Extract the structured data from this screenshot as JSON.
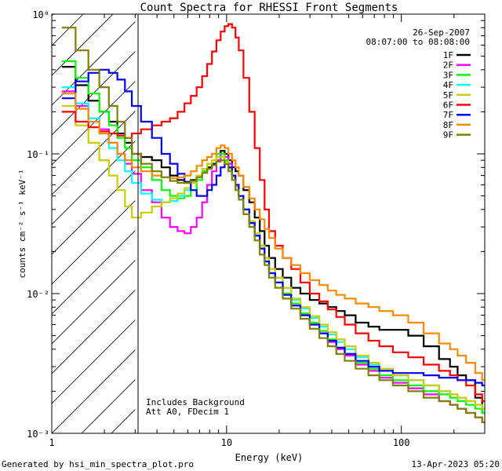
{
  "chart_data": {
    "type": "line",
    "title": "Count Spectra for RHESSI Front Segments",
    "xlabel": "Energy (keV)",
    "ylabel": "counts cm⁻² s⁻¹ keV⁻¹",
    "xscale": "log",
    "yscale": "log",
    "xlim": [
      1,
      300
    ],
    "ylim": [
      0.001,
      1
    ],
    "x_tick_labels": [
      "1",
      "10",
      "100"
    ],
    "x_tick_values": [
      1,
      10,
      100
    ],
    "y_tick_labels": [
      "10⁰",
      "10⁻¹",
      "10⁻²",
      "10⁻³"
    ],
    "y_tick_values": [
      1,
      0.1,
      0.01,
      0.001
    ],
    "date": "26-Sep-2007",
    "time_range": "08:07:00 to 08:08:00",
    "annotation_lines": [
      "Includes Background",
      "Att A0, FDecim 1"
    ],
    "excluded_region": {
      "from": 1,
      "to": 3,
      "note": "hatched low-energy region"
    },
    "energies_keV": [
      1.25,
      1.5,
      1.75,
      2.0,
      2.25,
      2.5,
      2.75,
      3.0,
      3.5,
      4.0,
      4.5,
      5.0,
      5.5,
      6.0,
      6.5,
      7.0,
      7.5,
      8.0,
      8.5,
      9.0,
      9.5,
      10.0,
      10.5,
      11.0,
      11.5,
      12.0,
      13.0,
      14.0,
      15.0,
      16.0,
      17.0,
      18.0,
      20.0,
      22.0,
      25.0,
      28.0,
      32.0,
      36.0,
      40.0,
      45.0,
      50.0,
      60.0,
      70.0,
      80.0,
      100.0,
      120.0,
      150.0,
      180.0,
      200.0,
      220.0,
      250.0,
      280.0,
      300.0
    ],
    "series": [
      {
        "name": "1F",
        "color": "#000000",
        "values": [
          0.42,
          0.31,
          0.24,
          0.2,
          0.17,
          0.14,
          0.12,
          0.1,
          0.095,
          0.09,
          0.08,
          0.07,
          0.065,
          0.063,
          0.065,
          0.07,
          0.075,
          0.08,
          0.085,
          0.095,
          0.105,
          0.1,
          0.09,
          0.08,
          0.075,
          0.07,
          0.055,
          0.045,
          0.035,
          0.028,
          0.022,
          0.018,
          0.015,
          0.013,
          0.011,
          0.01,
          0.009,
          0.0085,
          0.008,
          0.0075,
          0.007,
          0.0062,
          0.0058,
          0.0055,
          0.0055,
          0.005,
          0.0042,
          0.0034,
          0.003,
          0.0026,
          0.0024,
          0.0018,
          0.0014
        ]
      },
      {
        "name": "2F",
        "color": "#ff00ff",
        "values": [
          0.28,
          0.22,
          0.18,
          0.15,
          0.12,
          0.1,
          0.085,
          0.072,
          0.055,
          0.045,
          0.035,
          0.03,
          0.028,
          0.027,
          0.03,
          0.035,
          0.045,
          0.06,
          0.075,
          0.09,
          0.1,
          0.095,
          0.085,
          0.07,
          0.06,
          0.05,
          0.04,
          0.032,
          0.026,
          0.021,
          0.017,
          0.014,
          0.012,
          0.01,
          0.0085,
          0.0072,
          0.006,
          0.0052,
          0.0045,
          0.004,
          0.0036,
          0.0031,
          0.0028,
          0.0025,
          0.0023,
          0.0021,
          0.0019,
          0.0017,
          0.0016,
          0.0015,
          0.0014,
          0.0013,
          0.0012
        ]
      },
      {
        "name": "3F",
        "color": "#00ff00",
        "values": [
          0.46,
          0.35,
          0.27,
          0.2,
          0.16,
          0.13,
          0.11,
          0.09,
          0.08,
          0.065,
          0.055,
          0.05,
          0.048,
          0.05,
          0.055,
          0.065,
          0.075,
          0.085,
          0.09,
          0.1,
          0.1,
          0.09,
          0.08,
          0.07,
          0.06,
          0.05,
          0.04,
          0.032,
          0.026,
          0.021,
          0.017,
          0.014,
          0.012,
          0.01,
          0.0085,
          0.0072,
          0.0062,
          0.0054,
          0.0047,
          0.0041,
          0.0037,
          0.0032,
          0.0029,
          0.0026,
          0.0024,
          0.0022,
          0.002,
          0.0019,
          0.0018,
          0.0017,
          0.0016,
          0.0015,
          0.0014
        ]
      },
      {
        "name": "4F",
        "color": "#00ffff",
        "values": [
          0.3,
          0.23,
          0.18,
          0.14,
          0.11,
          0.09,
          0.075,
          0.062,
          0.052,
          0.047,
          0.045,
          0.046,
          0.05,
          0.055,
          0.062,
          0.07,
          0.078,
          0.085,
          0.09,
          0.095,
          0.095,
          0.088,
          0.078,
          0.068,
          0.058,
          0.05,
          0.04,
          0.033,
          0.027,
          0.022,
          0.018,
          0.015,
          0.013,
          0.011,
          0.009,
          0.0078,
          0.0067,
          0.0058,
          0.0051,
          0.0045,
          0.004,
          0.0035,
          0.0031,
          0.0028,
          0.0026,
          0.0024,
          0.0022,
          0.002,
          0.0019,
          0.0018,
          0.0017,
          0.0016,
          0.0015
        ]
      },
      {
        "name": "5F",
        "color": "#cccc00",
        "values": [
          0.22,
          0.16,
          0.12,
          0.09,
          0.07,
          0.055,
          0.042,
          0.035,
          0.038,
          0.042,
          0.045,
          0.048,
          0.052,
          0.057,
          0.062,
          0.07,
          0.078,
          0.085,
          0.09,
          0.095,
          0.095,
          0.088,
          0.078,
          0.068,
          0.058,
          0.05,
          0.04,
          0.033,
          0.027,
          0.022,
          0.018,
          0.015,
          0.013,
          0.011,
          0.0092,
          0.008,
          0.0069,
          0.006,
          0.0053,
          0.0047,
          0.0042,
          0.0036,
          0.0032,
          0.0029,
          0.0026,
          0.0024,
          0.0022,
          0.002,
          0.0019,
          0.0018,
          0.0017,
          0.0016,
          0.0015
        ]
      },
      {
        "name": "6F",
        "color": "#ff0000",
        "values": [
          0.2,
          0.17,
          0.155,
          0.145,
          0.14,
          0.135,
          0.13,
          0.14,
          0.15,
          0.16,
          0.17,
          0.18,
          0.2,
          0.23,
          0.26,
          0.3,
          0.36,
          0.44,
          0.54,
          0.65,
          0.75,
          0.82,
          0.85,
          0.8,
          0.68,
          0.55,
          0.35,
          0.2,
          0.11,
          0.065,
          0.04,
          0.028,
          0.022,
          0.018,
          0.015,
          0.012,
          0.01,
          0.0088,
          0.0077,
          0.0068,
          0.006,
          0.0052,
          0.0046,
          0.0042,
          0.0038,
          0.0035,
          0.0031,
          0.0028,
          0.0026,
          0.0024,
          0.0022,
          0.0019,
          0.0017
        ]
      },
      {
        "name": "7F",
        "color": "#0000ff",
        "values": [
          0.25,
          0.33,
          0.38,
          0.4,
          0.38,
          0.34,
          0.28,
          0.22,
          0.17,
          0.13,
          0.1,
          0.085,
          0.072,
          0.062,
          0.055,
          0.05,
          0.05,
          0.055,
          0.06,
          0.07,
          0.08,
          0.085,
          0.08,
          0.07,
          0.06,
          0.05,
          0.04,
          0.032,
          0.026,
          0.021,
          0.017,
          0.014,
          0.012,
          0.0098,
          0.0082,
          0.007,
          0.006,
          0.0052,
          0.0046,
          0.0041,
          0.0037,
          0.0033,
          0.003,
          0.0028,
          0.0027,
          0.0027,
          0.0026,
          0.0025,
          0.0025,
          0.0024,
          0.0024,
          0.0023,
          0.0022
        ]
      },
      {
        "name": "8F",
        "color": "#ff8800",
        "values": [
          0.27,
          0.21,
          0.17,
          0.14,
          0.12,
          0.1,
          0.09,
          0.08,
          0.075,
          0.07,
          0.068,
          0.067,
          0.068,
          0.07,
          0.075,
          0.082,
          0.09,
          0.095,
          0.1,
          0.11,
          0.115,
          0.11,
          0.1,
          0.09,
          0.08,
          0.07,
          0.058,
          0.048,
          0.04,
          0.034,
          0.029,
          0.025,
          0.021,
          0.018,
          0.016,
          0.014,
          0.0125,
          0.0115,
          0.0105,
          0.0098,
          0.0092,
          0.0085,
          0.008,
          0.0075,
          0.007,
          0.0062,
          0.0052,
          0.0044,
          0.004,
          0.0036,
          0.0032,
          0.0027,
          0.0024
        ]
      },
      {
        "name": "9F",
        "color": "#808000",
        "values": [
          0.8,
          0.55,
          0.4,
          0.3,
          0.22,
          0.17,
          0.13,
          0.1,
          0.085,
          0.075,
          0.068,
          0.064,
          0.062,
          0.062,
          0.064,
          0.068,
          0.073,
          0.078,
          0.083,
          0.088,
          0.09,
          0.085,
          0.075,
          0.065,
          0.055,
          0.047,
          0.037,
          0.03,
          0.024,
          0.019,
          0.016,
          0.013,
          0.011,
          0.0092,
          0.0078,
          0.0066,
          0.0056,
          0.0048,
          0.0042,
          0.0037,
          0.0033,
          0.0029,
          0.0026,
          0.0024,
          0.0022,
          0.002,
          0.0018,
          0.0017,
          0.0016,
          0.0015,
          0.0014,
          0.0013,
          0.0012
        ]
      }
    ]
  },
  "footer": {
    "generated_by": "Generated by hsi_min_spectra_plot.pro",
    "timestamp": "13-Apr-2023 05:20"
  }
}
